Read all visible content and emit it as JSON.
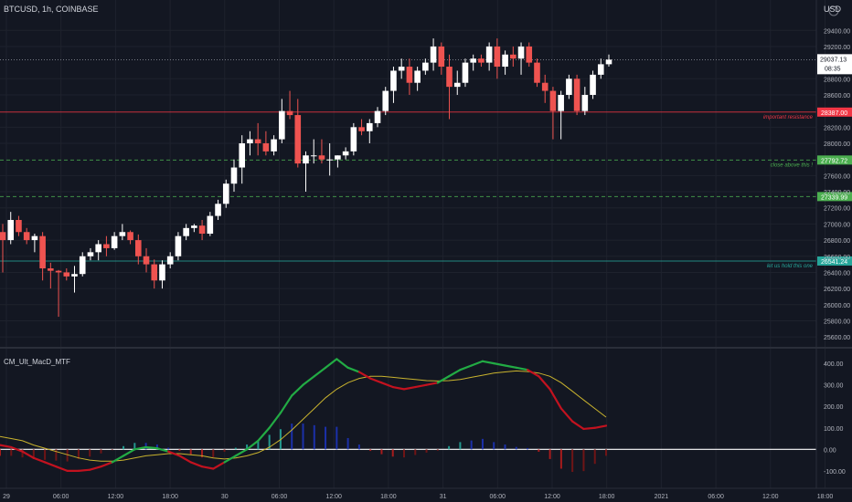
{
  "header": {
    "symbol": "BTCUSD, 1h, COINBASE",
    "currency": "USD"
  },
  "price_axis": {
    "ticks": [
      "29400.00",
      "29200.00",
      "28800.00",
      "28600.00",
      "28200.00",
      "28000.00",
      "27600.00",
      "27400.00",
      "27200.00",
      "27000.00",
      "26800.00",
      "26600.00",
      "26400.00",
      "26200.00",
      "26000.00",
      "25800.00",
      "25600.00"
    ],
    "current_price": "29037.13",
    "countdown": "08:35"
  },
  "levels": [
    {
      "price_label": "28387.00",
      "note": "important resistance",
      "color": "#f23645",
      "style": "solid"
    },
    {
      "price_label": "27792.72",
      "note": "close above this !",
      "color": "#4caf50",
      "style": "dashed"
    },
    {
      "price_label": "27339.99",
      "note": "",
      "color": "#4caf50",
      "style": "dashed"
    },
    {
      "price_label": "26541.24",
      "note": "let us hold this one",
      "color": "#26a69a",
      "style": "solid"
    }
  ],
  "indicator": {
    "name": "CM_Ult_MacD_MTF",
    "ticks": [
      "400.00",
      "300.00",
      "200.00",
      "100.00",
      "0.00",
      "-100.00"
    ]
  },
  "time_axis": [
    "29",
    "06:00",
    "12:00",
    "18:00",
    "30",
    "06:00",
    "12:00",
    "18:00",
    "31",
    "06:00",
    "12:00",
    "18:00",
    "2021",
    "06:00",
    "12:00",
    "18:00"
  ],
  "colors": {
    "up": "#ffffff",
    "down": "#ef5350",
    "macd_up": "#22ab44",
    "macd_down": "#c2121f",
    "signal": "#c9b32e",
    "hist_teal": "#26a69a",
    "hist_blue": "#1d33b8",
    "hist_red": "#b71c1c"
  },
  "chart_data": {
    "type": "candlestick",
    "title": "BTCUSD, 1h, COINBASE",
    "ylabel": "USD",
    "ylim": [
      25500,
      29550
    ],
    "candles": [
      {
        "o": 26900,
        "h": 27000,
        "l": 26400,
        "c": 26800
      },
      {
        "o": 26800,
        "h": 27150,
        "l": 26750,
        "c": 27050
      },
      {
        "o": 27050,
        "h": 27100,
        "l": 26850,
        "c": 26900
      },
      {
        "o": 26900,
        "h": 26950,
        "l": 26750,
        "c": 26800
      },
      {
        "o": 26800,
        "h": 26880,
        "l": 26650,
        "c": 26850
      },
      {
        "o": 26850,
        "h": 26900,
        "l": 26300,
        "c": 26450
      },
      {
        "o": 26450,
        "h": 26520,
        "l": 26200,
        "c": 26420
      },
      {
        "o": 26420,
        "h": 26430,
        "l": 25850,
        "c": 26400
      },
      {
        "o": 26400,
        "h": 26450,
        "l": 26300,
        "c": 26350
      },
      {
        "o": 26350,
        "h": 26480,
        "l": 26150,
        "c": 26380
      },
      {
        "o": 26380,
        "h": 26650,
        "l": 26350,
        "c": 26600
      },
      {
        "o": 26600,
        "h": 26700,
        "l": 26550,
        "c": 26650
      },
      {
        "o": 26650,
        "h": 26800,
        "l": 26550,
        "c": 26750
      },
      {
        "o": 26750,
        "h": 26850,
        "l": 26600,
        "c": 26700
      },
      {
        "o": 26700,
        "h": 26900,
        "l": 26680,
        "c": 26850
      },
      {
        "o": 26850,
        "h": 27000,
        "l": 26800,
        "c": 26900
      },
      {
        "o": 26900,
        "h": 26920,
        "l": 26750,
        "c": 26800
      },
      {
        "o": 26800,
        "h": 26870,
        "l": 26500,
        "c": 26600
      },
      {
        "o": 26600,
        "h": 26700,
        "l": 26400,
        "c": 26500
      },
      {
        "o": 26500,
        "h": 26560,
        "l": 26200,
        "c": 26300
      },
      {
        "o": 26300,
        "h": 26550,
        "l": 26200,
        "c": 26500
      },
      {
        "o": 26500,
        "h": 26650,
        "l": 26450,
        "c": 26600
      },
      {
        "o": 26600,
        "h": 26900,
        "l": 26550,
        "c": 26850
      },
      {
        "o": 26850,
        "h": 27000,
        "l": 26800,
        "c": 26950
      },
      {
        "o": 26950,
        "h": 27000,
        "l": 26900,
        "c": 26980
      },
      {
        "o": 26980,
        "h": 27050,
        "l": 26800,
        "c": 26880
      },
      {
        "o": 26880,
        "h": 27150,
        "l": 26850,
        "c": 27100
      },
      {
        "o": 27100,
        "h": 27300,
        "l": 27050,
        "c": 27250
      },
      {
        "o": 27250,
        "h": 27550,
        "l": 27200,
        "c": 27500
      },
      {
        "o": 27500,
        "h": 27800,
        "l": 27400,
        "c": 27700
      },
      {
        "o": 27700,
        "h": 28100,
        "l": 27500,
        "c": 28000
      },
      {
        "o": 28000,
        "h": 28150,
        "l": 27850,
        "c": 28050
      },
      {
        "o": 28050,
        "h": 28250,
        "l": 27850,
        "c": 28000
      },
      {
        "o": 28000,
        "h": 28150,
        "l": 27850,
        "c": 27900
      },
      {
        "o": 27900,
        "h": 28100,
        "l": 27850,
        "c": 28050
      },
      {
        "o": 28050,
        "h": 28550,
        "l": 28000,
        "c": 28400
      },
      {
        "o": 28400,
        "h": 28650,
        "l": 28300,
        "c": 28350
      },
      {
        "o": 28350,
        "h": 28550,
        "l": 27700,
        "c": 27750
      },
      {
        "o": 27750,
        "h": 27900,
        "l": 27400,
        "c": 27850
      },
      {
        "o": 27850,
        "h": 28050,
        "l": 27750,
        "c": 27850
      },
      {
        "o": 27850,
        "h": 28050,
        "l": 27750,
        "c": 27800
      },
      {
        "o": 27800,
        "h": 28000,
        "l": 27600,
        "c": 27800
      },
      {
        "o": 27800,
        "h": 27850,
        "l": 27700,
        "c": 27850
      },
      {
        "o": 27850,
        "h": 27950,
        "l": 27800,
        "c": 27900
      },
      {
        "o": 27900,
        "h": 28250,
        "l": 27850,
        "c": 28200
      },
      {
        "o": 28200,
        "h": 28300,
        "l": 28100,
        "c": 28150
      },
      {
        "o": 28150,
        "h": 28300,
        "l": 28000,
        "c": 28250
      },
      {
        "o": 28250,
        "h": 28450,
        "l": 28200,
        "c": 28400
      },
      {
        "o": 28400,
        "h": 28700,
        "l": 28350,
        "c": 28650
      },
      {
        "o": 28650,
        "h": 28950,
        "l": 28500,
        "c": 28900
      },
      {
        "o": 28900,
        "h": 29050,
        "l": 28800,
        "c": 28950
      },
      {
        "o": 28950,
        "h": 29050,
        "l": 28600,
        "c": 28750
      },
      {
        "o": 28750,
        "h": 28950,
        "l": 28650,
        "c": 28900
      },
      {
        "o": 28900,
        "h": 29050,
        "l": 28850,
        "c": 29000
      },
      {
        "o": 29000,
        "h": 29300,
        "l": 28900,
        "c": 29200
      },
      {
        "o": 29200,
        "h": 29250,
        "l": 28850,
        "c": 28950
      },
      {
        "o": 28950,
        "h": 29100,
        "l": 28300,
        "c": 28700
      },
      {
        "o": 28700,
        "h": 28900,
        "l": 28600,
        "c": 28750
      },
      {
        "o": 28750,
        "h": 29050,
        "l": 28700,
        "c": 29000
      },
      {
        "o": 29000,
        "h": 29100,
        "l": 28900,
        "c": 29050
      },
      {
        "o": 29050,
        "h": 29100,
        "l": 28950,
        "c": 29000
      },
      {
        "o": 29000,
        "h": 29250,
        "l": 28900,
        "c": 29200
      },
      {
        "o": 29200,
        "h": 29300,
        "l": 28800,
        "c": 28950
      },
      {
        "o": 28950,
        "h": 29150,
        "l": 28850,
        "c": 29100
      },
      {
        "o": 29100,
        "h": 29200,
        "l": 28950,
        "c": 29050
      },
      {
        "o": 29050,
        "h": 29250,
        "l": 28850,
        "c": 29200
      },
      {
        "o": 29200,
        "h": 29250,
        "l": 28950,
        "c": 29000
      },
      {
        "o": 29000,
        "h": 29050,
        "l": 28700,
        "c": 28750
      },
      {
        "o": 28750,
        "h": 28850,
        "l": 28500,
        "c": 28650
      },
      {
        "o": 28650,
        "h": 28700,
        "l": 28050,
        "c": 28400
      },
      {
        "o": 28400,
        "h": 28650,
        "l": 28050,
        "c": 28600
      },
      {
        "o": 28600,
        "h": 28850,
        "l": 28550,
        "c": 28800
      },
      {
        "o": 28800,
        "h": 28850,
        "l": 28350,
        "c": 28400
      },
      {
        "o": 28400,
        "h": 28700,
        "l": 28350,
        "c": 28600
      },
      {
        "o": 28600,
        "h": 28900,
        "l": 28550,
        "c": 28850
      },
      {
        "o": 28850,
        "h": 29050,
        "l": 28800,
        "c": 28980
      },
      {
        "o": 28980,
        "h": 29100,
        "l": 28950,
        "c": 29037
      }
    ],
    "macd": {
      "ylim": [
        -160,
        460
      ],
      "macd_line": [
        20,
        10,
        -10,
        -40,
        -60,
        -80,
        -100,
        -100,
        -95,
        -80,
        -60,
        -30,
        0,
        10,
        5,
        -10,
        -30,
        -60,
        -80,
        -90,
        -60,
        -30,
        0,
        40,
        100,
        170,
        250,
        300,
        340,
        380,
        420,
        380,
        360,
        330,
        310,
        290,
        280,
        290,
        300,
        310,
        340,
        370,
        390,
        410,
        400,
        390,
        380,
        370,
        340,
        280,
        190,
        130,
        95,
        100,
        110
      ],
      "signal_line": [
        60,
        50,
        40,
        20,
        5,
        -10,
        -25,
        -40,
        -50,
        -55,
        -55,
        -50,
        -40,
        -30,
        -25,
        -20,
        -20,
        -25,
        -30,
        -40,
        -45,
        -40,
        -30,
        -15,
        10,
        45,
        90,
        140,
        190,
        240,
        280,
        310,
        330,
        340,
        340,
        335,
        330,
        325,
        320,
        318,
        320,
        325,
        335,
        345,
        355,
        360,
        365,
        362,
        355,
        340,
        310,
        270,
        230,
        190,
        150
      ]
    }
  }
}
